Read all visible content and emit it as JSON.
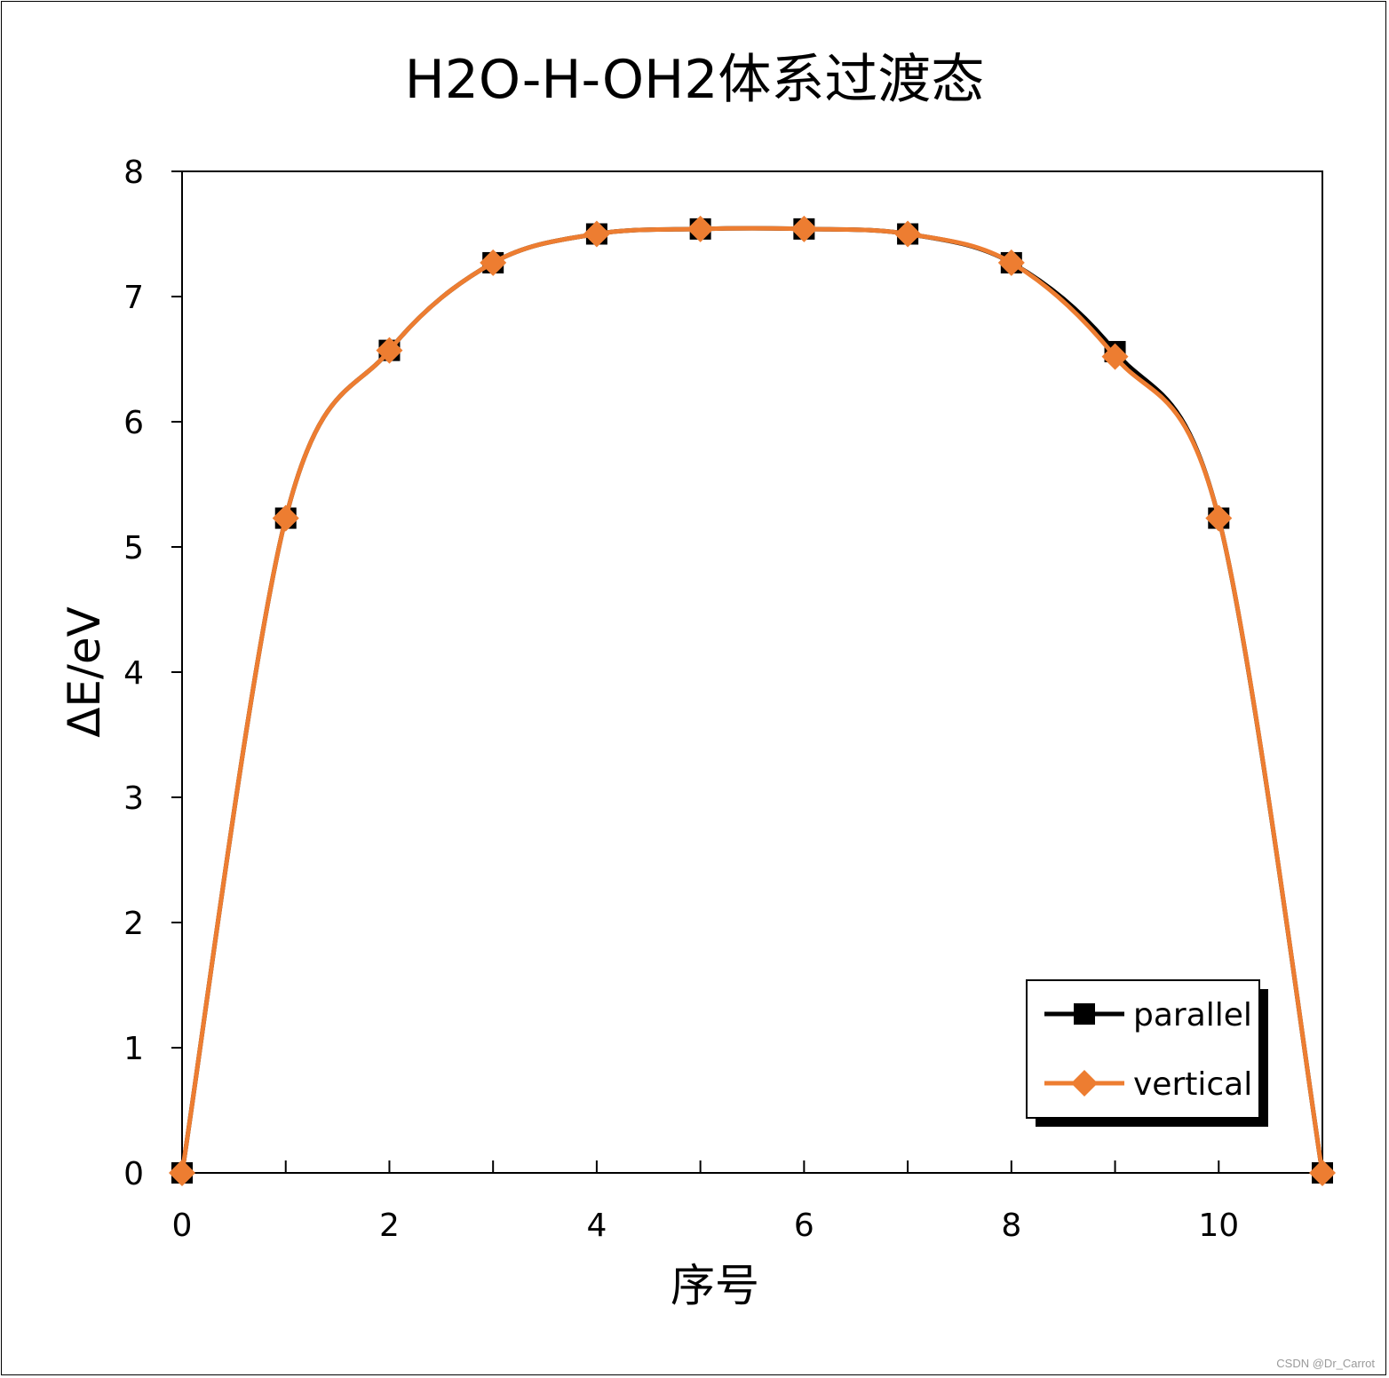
{
  "chart_data": {
    "type": "line",
    "title": "H2O-H-OH2体系过渡态",
    "xlabel": "序号",
    "ylabel": "ΔE/eV",
    "xlim": [
      0,
      11
    ],
    "ylim": [
      0,
      8
    ],
    "xticks": [
      0,
      2,
      4,
      6,
      8,
      10
    ],
    "yticks": [
      0,
      1,
      2,
      3,
      4,
      5,
      6,
      7,
      8
    ],
    "grid": false,
    "legend_position": "bottom-right",
    "smooth": true,
    "x": [
      0,
      1,
      2,
      3,
      4,
      5,
      6,
      7,
      8,
      9,
      10,
      11
    ],
    "series": [
      {
        "name": "parallel",
        "color": "#000000",
        "marker": "square",
        "values": [
          0,
          5.23,
          6.57,
          7.27,
          7.5,
          7.54,
          7.54,
          7.5,
          7.27,
          6.56,
          5.23,
          0
        ]
      },
      {
        "name": "vertical",
        "color": "#ED7D31",
        "marker": "diamond",
        "values": [
          0,
          5.23,
          6.57,
          7.27,
          7.5,
          7.54,
          7.54,
          7.5,
          7.27,
          6.52,
          5.23,
          0
        ]
      }
    ]
  },
  "watermark": "CSDN @Dr_Carrot"
}
